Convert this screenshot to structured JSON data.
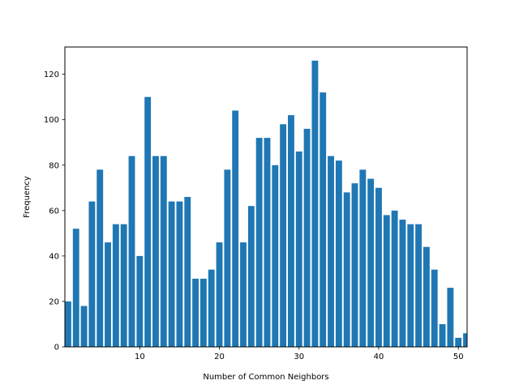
{
  "chart_data": {
    "type": "bar",
    "title": "",
    "xlabel": "Number of Common Neighbors",
    "ylabel": "Frequency",
    "xlim": [
      0.6,
      51.1
    ],
    "ylim": [
      0,
      132
    ],
    "x_ticks": [
      10,
      20,
      30,
      40,
      50
    ],
    "y_ticks": [
      0,
      20,
      40,
      60,
      80,
      100,
      120
    ],
    "bar_color": "#1f77b4",
    "grid": false,
    "legend": "none",
    "categories": [
      1,
      2,
      3,
      4,
      5,
      6,
      7,
      8,
      9,
      10,
      11,
      12,
      13,
      14,
      15,
      16,
      17,
      18,
      19,
      20,
      21,
      22,
      23,
      24,
      25,
      26,
      27,
      28,
      29,
      30,
      31,
      32,
      33,
      34,
      35,
      36,
      37,
      38,
      39,
      40,
      41,
      42,
      43,
      44,
      45,
      46,
      47,
      48,
      49,
      50,
      51
    ],
    "values": [
      20,
      52,
      18,
      64,
      78,
      46,
      54,
      54,
      84,
      40,
      110,
      84,
      84,
      64,
      64,
      66,
      30,
      30,
      34,
      46,
      78,
      104,
      46,
      62,
      92,
      92,
      80,
      98,
      102,
      86,
      96,
      126,
      112,
      84,
      82,
      68,
      72,
      78,
      74,
      70,
      58,
      60,
      56,
      54,
      54,
      44,
      34,
      10,
      26,
      4,
      6
    ]
  }
}
